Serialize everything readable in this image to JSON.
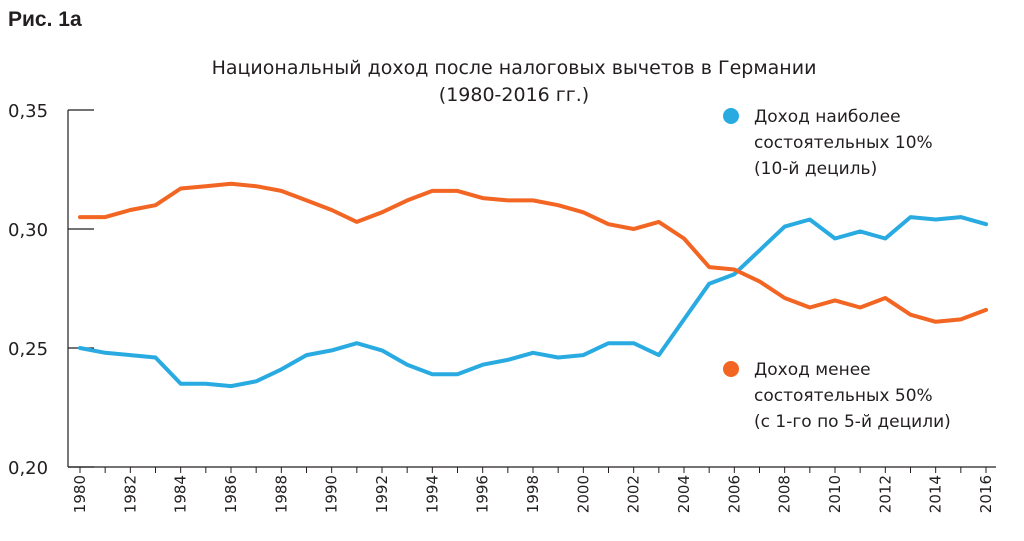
{
  "figure_label": "Рис. 1a",
  "chart_data": {
    "type": "line",
    "title": "Национальный доход после налоговых вычетов в Германии",
    "subtitle": "(1980-2016 гг.)",
    "xlabel": "",
    "ylabel": "",
    "ylim": [
      0.2,
      0.35
    ],
    "y_ticks": [
      "0,20",
      "0,25",
      "0,30",
      "0,35"
    ],
    "x_ticks": [
      "1980",
      "1982",
      "1984",
      "1986",
      "1988",
      "1990",
      "1992",
      "1994",
      "1996",
      "1998",
      "2000",
      "2002",
      "2004",
      "2006",
      "2008",
      "2010",
      "2012",
      "2014",
      "2016"
    ],
    "grid": false,
    "legend_placement": "right",
    "x": [
      1980,
      1981,
      1982,
      1983,
      1984,
      1985,
      1986,
      1987,
      1988,
      1989,
      1990,
      1991,
      1992,
      1993,
      1994,
      1995,
      1996,
      1997,
      1998,
      1999,
      2000,
      2001,
      2002,
      2003,
      2004,
      2005,
      2006,
      2007,
      2008,
      2009,
      2010,
      2011,
      2012,
      2013,
      2014,
      2015,
      2016
    ],
    "series": [
      {
        "name_lines": [
          "Доход наиболее",
          "состоятельных 10%",
          "(10-й дециль)"
        ],
        "color": "#29abe2",
        "values": [
          0.25,
          0.248,
          0.247,
          0.246,
          0.235,
          0.235,
          0.234,
          0.236,
          0.241,
          0.247,
          0.249,
          0.252,
          0.249,
          0.243,
          0.239,
          0.239,
          0.243,
          0.245,
          0.248,
          0.246,
          0.247,
          0.252,
          0.252,
          0.247,
          0.262,
          0.277,
          0.281,
          0.291,
          0.301,
          0.304,
          0.296,
          0.299,
          0.296,
          0.305,
          0.304,
          0.305,
          0.302
        ]
      },
      {
        "name_lines": [
          "Доход менее",
          "состоятельных 50%",
          "(с 1-го по 5-й децили)"
        ],
        "color": "#f26522",
        "values": [
          0.305,
          0.305,
          0.308,
          0.31,
          0.317,
          0.318,
          0.319,
          0.318,
          0.316,
          0.312,
          0.308,
          0.303,
          0.307,
          0.312,
          0.316,
          0.316,
          0.313,
          0.312,
          0.312,
          0.31,
          0.307,
          0.302,
          0.3,
          0.303,
          0.296,
          0.284,
          0.283,
          0.278,
          0.271,
          0.267,
          0.27,
          0.267,
          0.271,
          0.264,
          0.261,
          0.262,
          0.266
        ]
      }
    ]
  }
}
